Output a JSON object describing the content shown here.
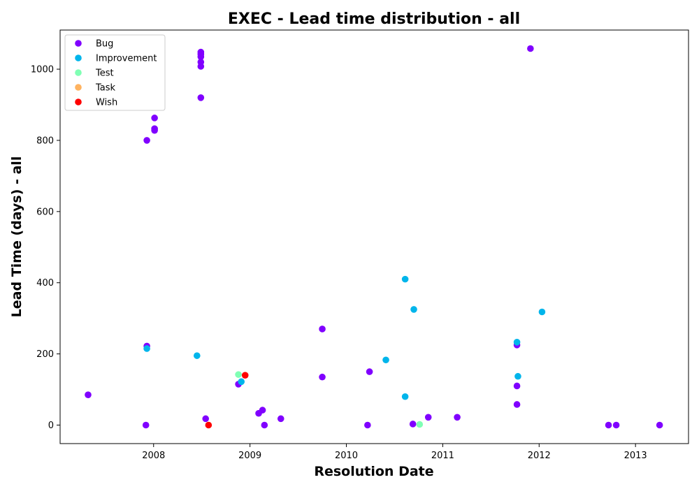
{
  "chart_data": {
    "type": "scatter",
    "title": "EXEC - Lead time distribution - all",
    "xlabel": "Resolution Date",
    "ylabel": "Lead Time (days) - all",
    "xlim": [
      2007.03,
      2013.55
    ],
    "ylim": [
      -52,
      1110
    ],
    "xticks": [
      2008,
      2009,
      2010,
      2011,
      2012,
      2013
    ],
    "yticks": [
      0,
      200,
      400,
      600,
      800,
      1000
    ],
    "grid": false,
    "legend_position": "top-left",
    "series": [
      {
        "name": "Bug",
        "color": "#8000ff",
        "points": [
          [
            2007.32,
            85
          ],
          [
            2007.92,
            0
          ],
          [
            2007.93,
            800
          ],
          [
            2007.93,
            222
          ],
          [
            2008.01,
            863
          ],
          [
            2008.01,
            833
          ],
          [
            2008.01,
            828
          ],
          [
            2008.49,
            1048
          ],
          [
            2008.49,
            1042
          ],
          [
            2008.49,
            1035
          ],
          [
            2008.49,
            1020
          ],
          [
            2008.49,
            1008
          ],
          [
            2008.49,
            920
          ],
          [
            2008.54,
            18
          ],
          [
            2008.88,
            115
          ],
          [
            2009.09,
            33
          ],
          [
            2009.13,
            42
          ],
          [
            2009.15,
            0
          ],
          [
            2009.32,
            18
          ],
          [
            2009.75,
            270
          ],
          [
            2009.75,
            135
          ],
          [
            2010.22,
            0
          ],
          [
            2010.24,
            150
          ],
          [
            2010.69,
            3
          ],
          [
            2010.85,
            22
          ],
          [
            2011.15,
            22
          ],
          [
            2011.77,
            225
          ],
          [
            2011.77,
            110
          ],
          [
            2011.77,
            58
          ],
          [
            2011.91,
            1058
          ],
          [
            2012.72,
            0
          ],
          [
            2012.8,
            0
          ],
          [
            2013.25,
            0
          ]
        ]
      },
      {
        "name": "Improvement",
        "color": "#00b5eb",
        "points": [
          [
            2007.93,
            215
          ],
          [
            2008.45,
            195
          ],
          [
            2008.91,
            122
          ],
          [
            2010.41,
            183
          ],
          [
            2010.61,
            410
          ],
          [
            2010.61,
            80
          ],
          [
            2010.7,
            325
          ],
          [
            2011.77,
            233
          ],
          [
            2011.78,
            137
          ],
          [
            2012.03,
            318
          ]
        ]
      },
      {
        "name": "Test",
        "color": "#80ffb4",
        "points": [
          [
            2008.88,
            142
          ],
          [
            2010.76,
            2
          ]
        ]
      },
      {
        "name": "Task",
        "color": "#ffb360",
        "points": []
      },
      {
        "name": "Wish",
        "color": "#ff0000",
        "points": [
          [
            2008.95,
            140
          ],
          [
            2008.57,
            0
          ]
        ]
      }
    ]
  }
}
